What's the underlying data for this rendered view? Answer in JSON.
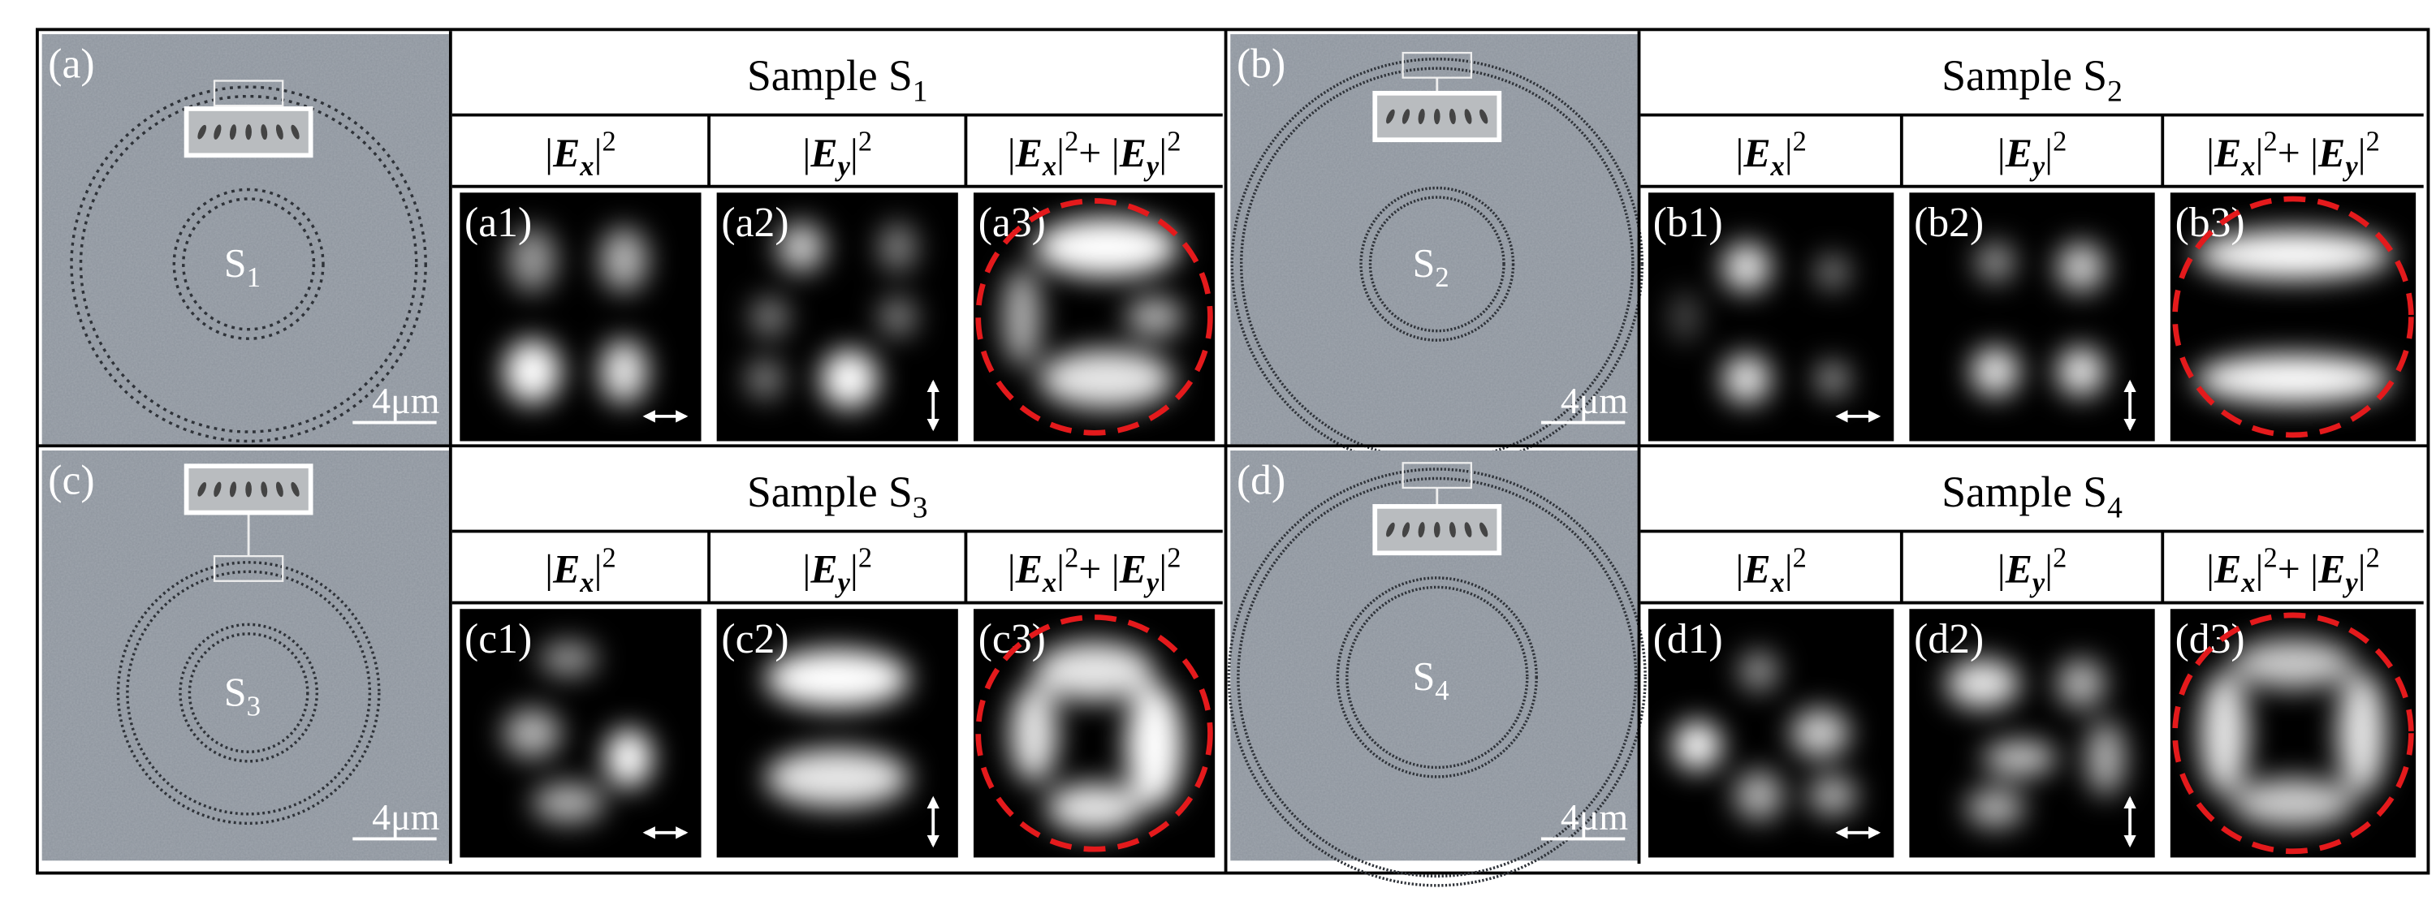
{
  "panels": [
    {
      "label": "(a)",
      "sem": {
        "symbol": "S",
        "subscript": "1",
        "scale_bar": "4μm"
      },
      "title": {
        "text": "Sample S",
        "subscript": "1"
      },
      "images": [
        "(a1)",
        "(a2)",
        "(a3)"
      ]
    },
    {
      "label": "(b)",
      "sem": {
        "symbol": "S",
        "subscript": "2",
        "scale_bar": "4μm"
      },
      "title": {
        "text": "Sample S",
        "subscript": "2"
      },
      "images": [
        "(b1)",
        "(b2)",
        "(b3)"
      ]
    },
    {
      "label": "(c)",
      "sem": {
        "symbol": "S",
        "subscript": "3",
        "scale_bar": "4μm"
      },
      "title": {
        "text": "Sample S",
        "subscript": "3"
      },
      "images": [
        "(c1)",
        "(c2)",
        "(c3)"
      ]
    },
    {
      "label": "(d)",
      "sem": {
        "symbol": "S",
        "subscript": "4",
        "scale_bar": "4μm"
      },
      "title": {
        "text": "Sample S",
        "subscript": "4"
      },
      "images": [
        "(d1)",
        "(d2)",
        "(d3)"
      ]
    }
  ],
  "column_headers": [
    [
      "|",
      "E",
      "x",
      "|",
      "2"
    ],
    [
      "|",
      "E",
      "y",
      "|",
      "2"
    ],
    [
      "|",
      "E",
      "x",
      "|",
      "2",
      "+ |",
      "E",
      "y",
      "|",
      "2"
    ]
  ]
}
